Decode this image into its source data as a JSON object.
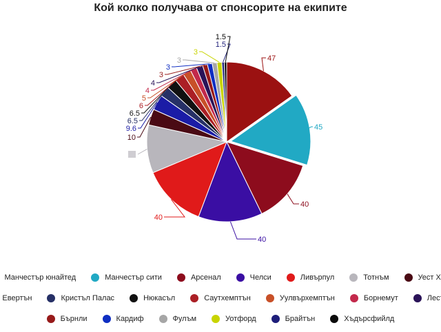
{
  "chart_data": {
    "type": "pie",
    "title": "Кой колко получава от спонсорите на екипите",
    "categories": [
      "Манчестър юнайтед",
      "Манчестър сити",
      "Арсенал",
      "Челси",
      "Ливърпул",
      "Тотнъм",
      "Уест Хем",
      "Евертън",
      "Кристъл Палас",
      "Нюкасъл",
      "Саутхемптън",
      "Уулвърхемптън",
      "Борнемут",
      "Лестър",
      "Бърнли",
      "Кардиф",
      "Фулъм",
      "Уотфорд",
      "Брайтън",
      "Хъдърсфийлд"
    ],
    "values": [
      47,
      45,
      40,
      40,
      40,
      30,
      10,
      9.6,
      6.5,
      6.5,
      6,
      5,
      4,
      4,
      3,
      3,
      3,
      3,
      1.5,
      1.5
    ],
    "labels": [
      "47",
      "45",
      "40",
      "40",
      "40",
      "",
      "10",
      "9.6",
      "6.5",
      "6.5",
      "6",
      "5",
      "4",
      "4",
      "3",
      "3",
      "3",
      "3",
      "1.5",
      "1.5"
    ],
    "colors": [
      "#9b1111",
      "#21a9c4",
      "#8d0c1d",
      "#3a0ea3",
      "#e01a1a",
      "#b8b6bc",
      "#4a0a14",
      "#1b1ca6",
      "#263066",
      "#111111",
      "#ab1f25",
      "#c85028",
      "#c3294b",
      "#2a1358",
      "#971a1a",
      "#0f2ec2",
      "#a6a6a6",
      "#c8d400",
      "#1e1e7a",
      "#0b0b0b"
    ],
    "legend_position": "bottom"
  }
}
